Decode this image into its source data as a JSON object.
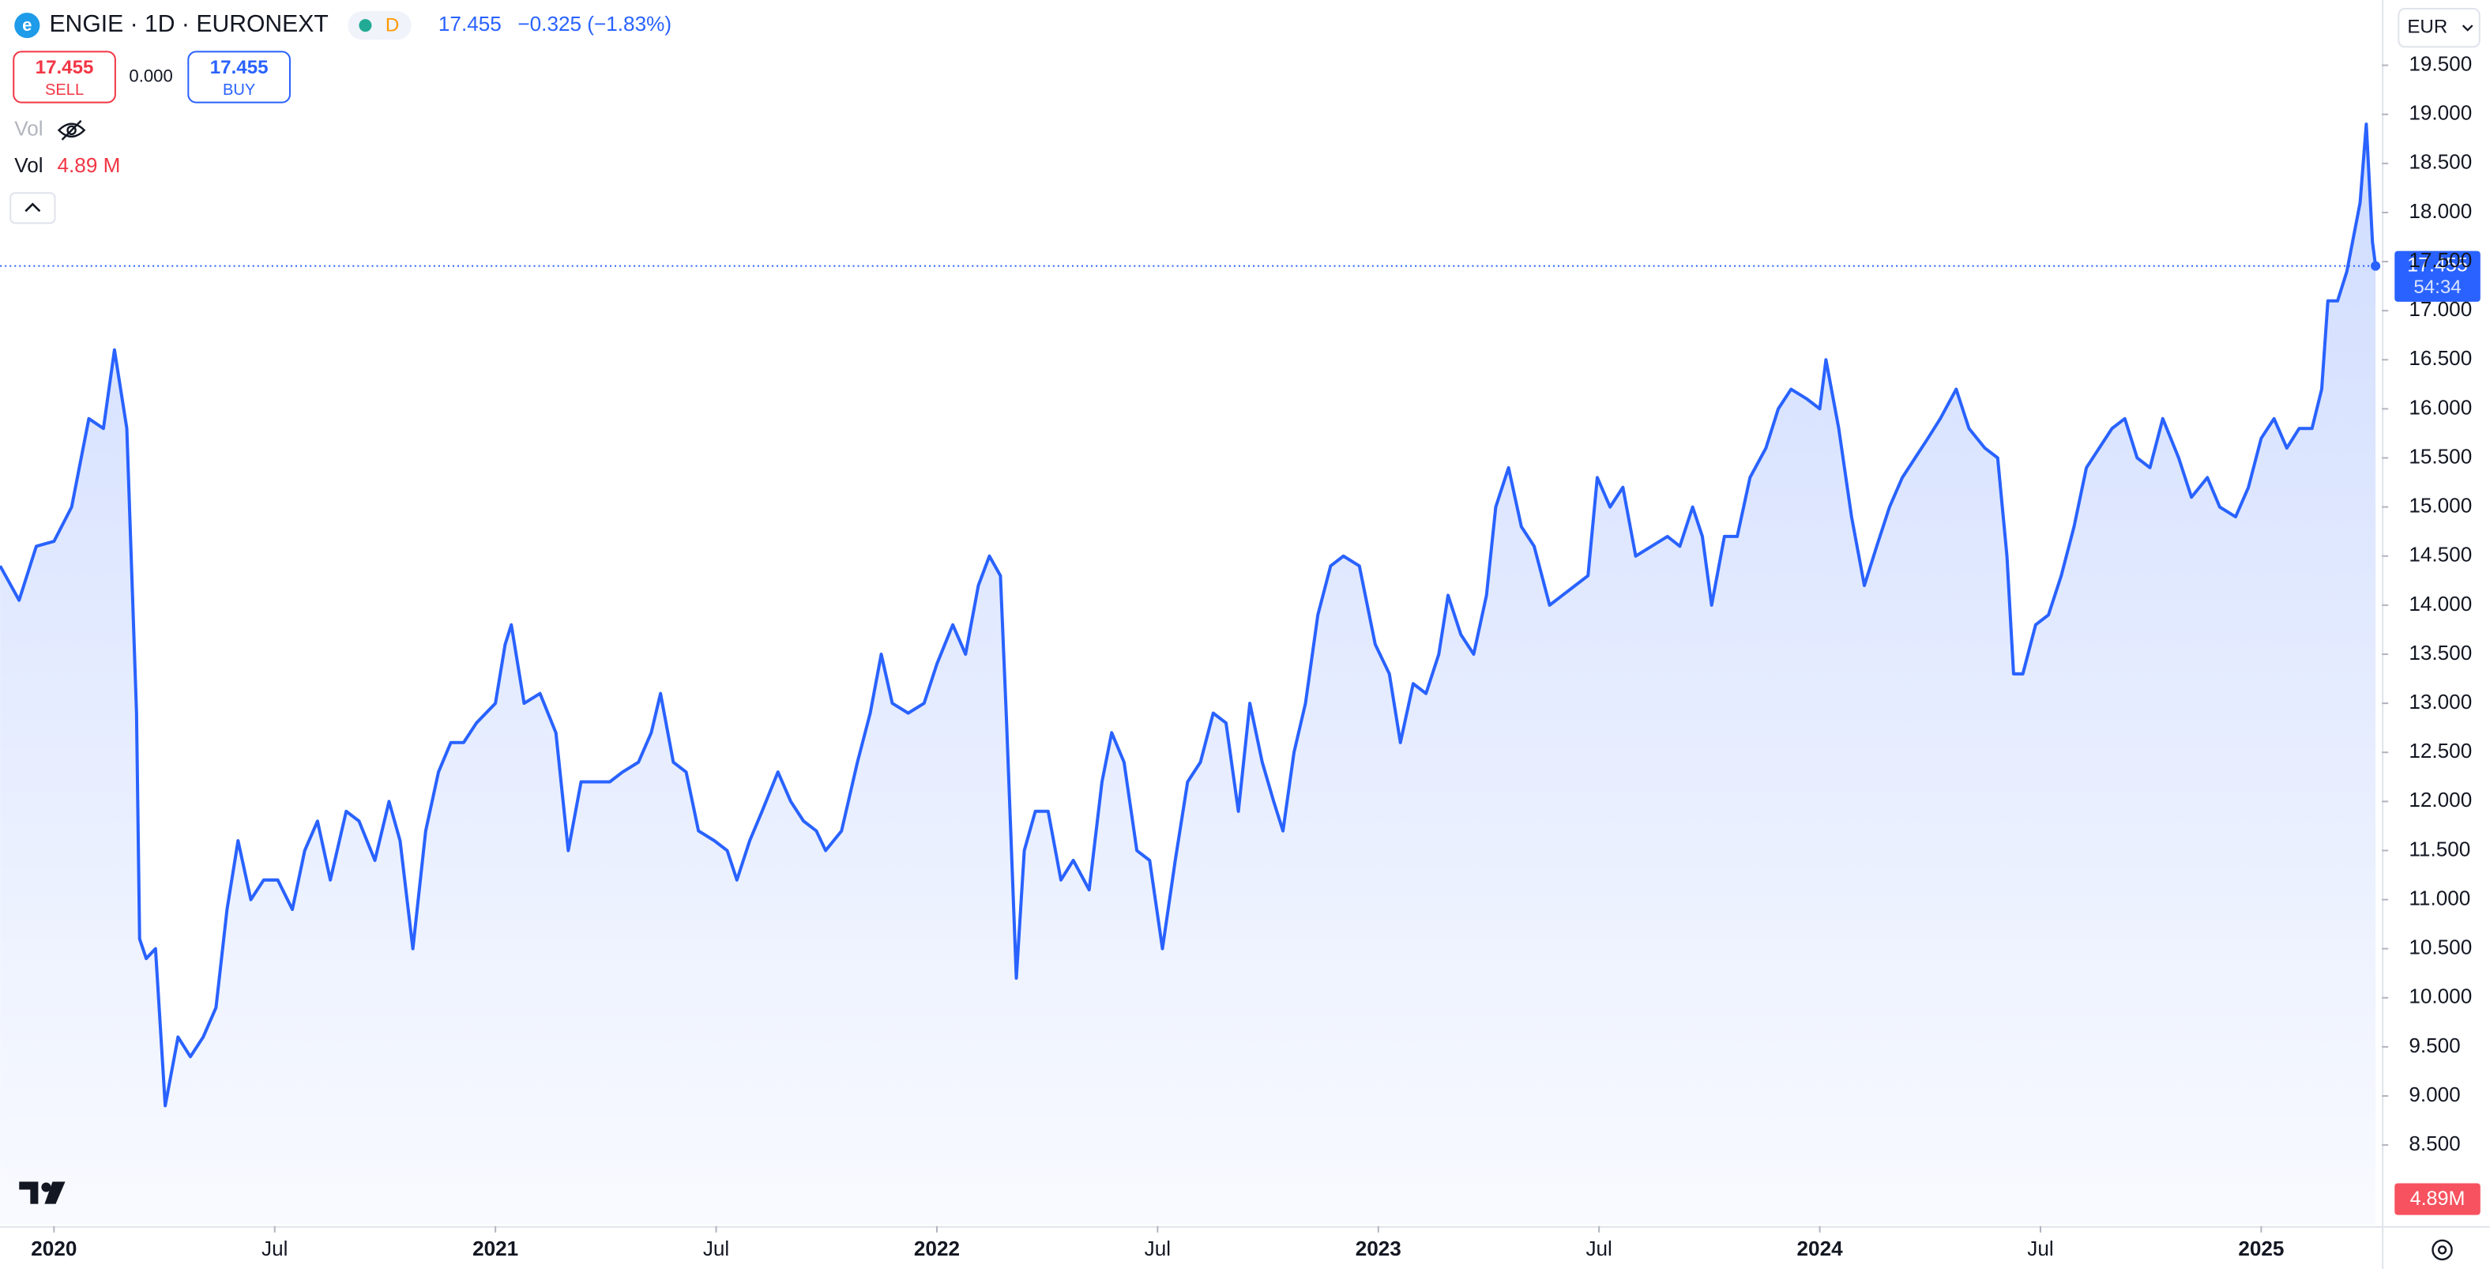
{
  "header": {
    "symbol": "ENGIE · 1D · EURONEXT",
    "interval_badge": "D",
    "last": "17.455",
    "change": "−0.325 (−1.83%)",
    "sell_price": "17.455",
    "sell_label": "SELL",
    "spread": "0.000",
    "buy_price": "17.455",
    "buy_label": "BUY",
    "vol_hidden_label": "Vol",
    "vol_label": "Vol",
    "vol_value": "4.89 M"
  },
  "price_scale": {
    "currency": "EUR",
    "last_price": "17.455",
    "countdown": "54:34",
    "volume": "4.89M"
  },
  "chart_data": {
    "type": "area",
    "x": [
      2019.878,
      2019.921,
      2019.96,
      2020.0,
      2020.04,
      2020.079,
      2020.112,
      2020.137,
      2020.165,
      2020.187,
      2020.194,
      2020.209,
      2020.23,
      2020.252,
      2020.281,
      2020.309,
      2020.338,
      2020.367,
      2020.392,
      2020.417,
      2020.446,
      2020.475,
      2020.507,
      2020.54,
      2020.568,
      2020.597,
      2020.626,
      2020.662,
      2020.691,
      2020.727,
      2020.759,
      2020.784,
      2020.813,
      2020.842,
      2020.871,
      2020.899,
      2020.928,
      2020.957,
      2021.0,
      2021.022,
      2021.036,
      2021.065,
      2021.101,
      2021.137,
      2021.165,
      2021.194,
      2021.227,
      2021.259,
      2021.288,
      2021.324,
      2021.353,
      2021.374,
      2021.403,
      2021.432,
      2021.46,
      2021.496,
      2021.525,
      2021.547,
      2021.576,
      2021.604,
      2021.64,
      2021.669,
      2021.698,
      2021.727,
      2021.748,
      2021.784,
      2021.82,
      2021.849,
      2021.874,
      2021.899,
      2021.935,
      2021.971,
      2022.0,
      2022.036,
      2022.065,
      2022.094,
      2022.119,
      2022.144,
      2022.158,
      2022.18,
      2022.198,
      2022.223,
      2022.252,
      2022.281,
      2022.309,
      2022.345,
      2022.374,
      2022.396,
      2022.424,
      2022.453,
      2022.482,
      2022.511,
      2022.54,
      2022.568,
      2022.597,
      2022.626,
      2022.655,
      2022.683,
      2022.709,
      2022.737,
      2022.763,
      2022.784,
      2022.809,
      2022.835,
      2022.863,
      2022.892,
      2022.921,
      2022.957,
      2022.993,
      2023.025,
      2023.05,
      2023.079,
      2023.108,
      2023.137,
      2023.158,
      2023.187,
      2023.216,
      2023.245,
      2023.266,
      2023.295,
      2023.324,
      2023.353,
      2023.388,
      2023.417,
      2023.446,
      2023.475,
      2023.496,
      2023.525,
      2023.554,
      2023.583,
      2023.619,
      2023.655,
      2023.683,
      2023.712,
      2023.734,
      2023.755,
      2023.784,
      2023.813,
      2023.842,
      2023.878,
      2023.906,
      2023.935,
      2023.971,
      2024.0,
      2024.014,
      2024.043,
      2024.072,
      2024.101,
      2024.129,
      2024.158,
      2024.187,
      2024.216,
      2024.245,
      2024.273,
      2024.309,
      2024.338,
      2024.374,
      2024.403,
      2024.424,
      2024.439,
      2024.46,
      2024.489,
      2024.518,
      2024.547,
      2024.576,
      2024.604,
      2024.633,
      2024.662,
      2024.691,
      2024.719,
      2024.748,
      2024.777,
      2024.813,
      2024.842,
      2024.878,
      2024.906,
      2024.942,
      2024.971,
      2025.0,
      2025.029,
      2025.058,
      2025.086,
      2025.115,
      2025.137,
      2025.151,
      2025.173,
      2025.194,
      2025.224,
      2025.238,
      2025.252,
      2025.259
    ],
    "series": [
      {
        "name": "ENGIE",
        "color": "#2962ff",
        "values": [
          14.4,
          14.05,
          14.6,
          14.65,
          15.0,
          15.9,
          15.8,
          16.6,
          15.8,
          12.9,
          10.6,
          10.4,
          10.5,
          8.9,
          9.6,
          9.4,
          9.6,
          9.9,
          10.9,
          11.6,
          11.0,
          11.2,
          11.2,
          10.9,
          11.5,
          11.8,
          11.2,
          11.9,
          11.8,
          11.4,
          12.0,
          11.6,
          10.5,
          11.7,
          12.3,
          12.6,
          12.6,
          12.8,
          13.0,
          13.6,
          13.8,
          13.0,
          13.1,
          12.7,
          11.5,
          12.2,
          12.2,
          12.2,
          12.3,
          12.4,
          12.7,
          13.1,
          12.4,
          12.3,
          11.7,
          11.6,
          11.5,
          11.2,
          11.6,
          11.9,
          12.3,
          12.0,
          11.8,
          11.7,
          11.5,
          11.7,
          12.4,
          12.9,
          13.5,
          13.0,
          12.9,
          13.0,
          13.4,
          13.8,
          13.5,
          14.2,
          14.5,
          14.3,
          12.8,
          10.2,
          11.5,
          11.9,
          11.9,
          11.2,
          11.4,
          11.1,
          12.2,
          12.7,
          12.4,
          11.5,
          11.4,
          10.5,
          11.4,
          12.2,
          12.4,
          12.9,
          12.8,
          11.9,
          13.0,
          12.4,
          12.0,
          11.7,
          12.5,
          13.0,
          13.9,
          14.4,
          14.5,
          14.4,
          13.6,
          13.3,
          12.6,
          13.2,
          13.1,
          13.5,
          14.1,
          13.7,
          13.5,
          14.1,
          15.0,
          15.4,
          14.8,
          14.6,
          14.0,
          14.1,
          14.2,
          14.3,
          15.3,
          15.0,
          15.2,
          14.5,
          14.6,
          14.7,
          14.6,
          15.0,
          14.7,
          14.0,
          14.7,
          14.7,
          15.3,
          15.6,
          16.0,
          16.2,
          16.1,
          16.0,
          16.5,
          15.8,
          14.9,
          14.2,
          14.6,
          15.0,
          15.3,
          15.5,
          15.7,
          15.9,
          16.2,
          15.8,
          15.6,
          15.5,
          14.5,
          13.3,
          13.3,
          13.8,
          13.9,
          14.3,
          14.8,
          15.4,
          15.6,
          15.8,
          15.9,
          15.5,
          15.4,
          15.9,
          15.5,
          15.1,
          15.3,
          15.0,
          14.9,
          15.2,
          15.7,
          15.9,
          15.6,
          15.8,
          15.8,
          16.2,
          17.1,
          17.1,
          17.4,
          18.1,
          18.9,
          17.7,
          17.455
        ]
      }
    ],
    "xlim": [
      2019.878,
      2025.259
    ],
    "xticks": [
      2020,
      {
        "value": 2020.5,
        "label": "Jul"
      },
      2021,
      {
        "value": 2021.5,
        "label": "Jul"
      },
      2022,
      {
        "value": 2022.5,
        "label": "Jul"
      },
      2023,
      {
        "value": 2023.5,
        "label": "Jul"
      },
      2024,
      {
        "value": 2024.5,
        "label": "Jul"
      },
      2025
    ],
    "ylim": [
      7.69,
      20.165
    ],
    "yticks": [
      {
        "value": 8.5,
        "label": "8.500"
      },
      {
        "value": 9,
        "label": "9.000"
      },
      {
        "value": 9.5,
        "label": "9.500"
      },
      {
        "value": 10,
        "label": "10.000"
      },
      {
        "value": 10.5,
        "label": "10.500"
      },
      {
        "value": 11,
        "label": "11.000"
      },
      {
        "value": 11.5,
        "label": "11.500"
      },
      {
        "value": 12,
        "label": "12.000"
      },
      {
        "value": 12.5,
        "label": "12.500"
      },
      {
        "value": 13,
        "label": "13.000"
      },
      {
        "value": 13.5,
        "label": "13.500"
      },
      {
        "value": 14,
        "label": "14.000"
      },
      {
        "value": 14.5,
        "label": "14.500"
      },
      {
        "value": 15,
        "label": "15.000"
      },
      {
        "value": 15.5,
        "label": "15.500"
      },
      {
        "value": 16,
        "label": "16.000"
      },
      {
        "value": 16.5,
        "label": "16.500"
      },
      {
        "value": 17,
        "label": "17.000"
      },
      {
        "value": 17.5,
        "label": "17.500"
      },
      {
        "value": 18,
        "label": "18.000"
      },
      {
        "value": 18.5,
        "label": "18.500"
      },
      {
        "value": 19,
        "label": "19.000"
      },
      {
        "value": 19.5,
        "label": "19.500"
      }
    ],
    "grid": false
  }
}
